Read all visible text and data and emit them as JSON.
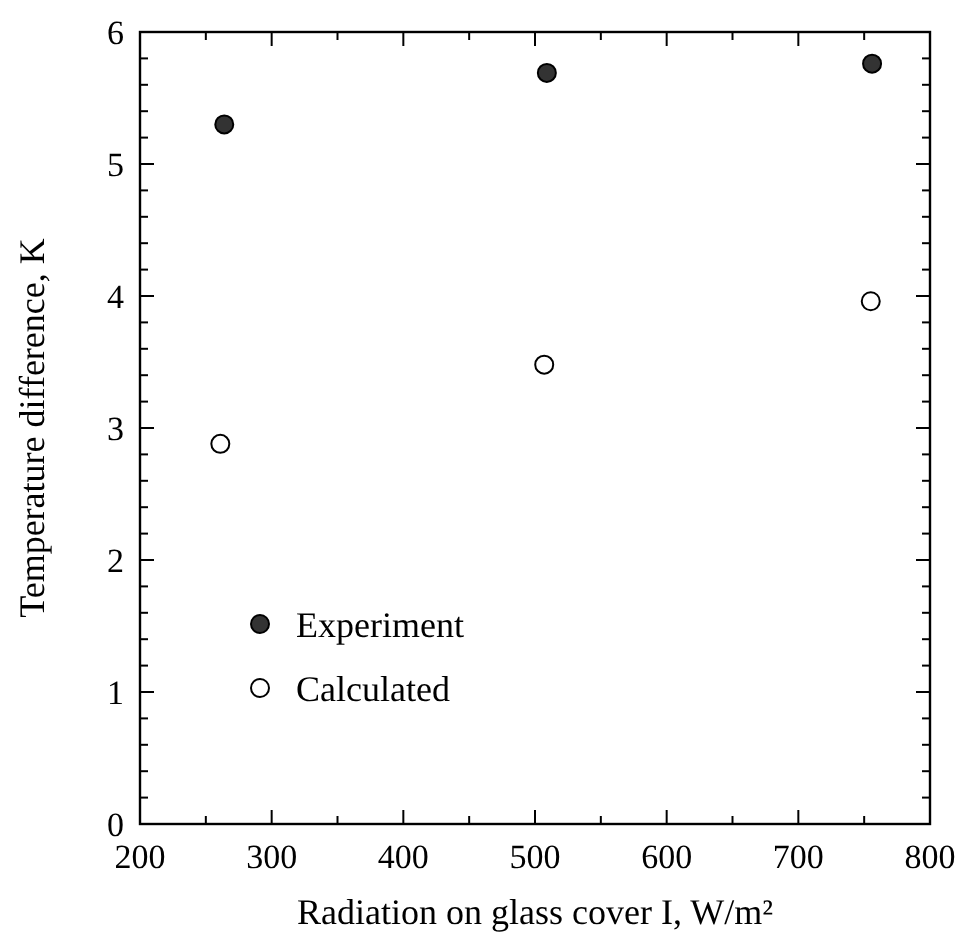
{
  "chart_data": {
    "type": "scatter",
    "xlabel": "Radiation on glass cover I, W/m²",
    "ylabel": "Temperature difference, K",
    "xlim": [
      200,
      800
    ],
    "xticks": [
      200,
      300,
      400,
      500,
      600,
      700,
      800
    ],
    "ylim": [
      0,
      6
    ],
    "yticks": [
      0,
      1,
      2,
      3,
      4,
      5,
      6
    ],
    "grid": false,
    "legend": "bottom left",
    "series": [
      {
        "name": "Experiment",
        "color": "#333333",
        "marker": "circle",
        "x": [
          264,
          509,
          756
        ],
        "values": [
          5.3,
          5.69,
          5.76
        ]
      },
      {
        "name": "Calculated",
        "color": "#ffffff",
        "marker": "circle",
        "x": [
          261,
          507,
          755
        ],
        "values": [
          2.88,
          3.48,
          3.96
        ]
      }
    ]
  }
}
